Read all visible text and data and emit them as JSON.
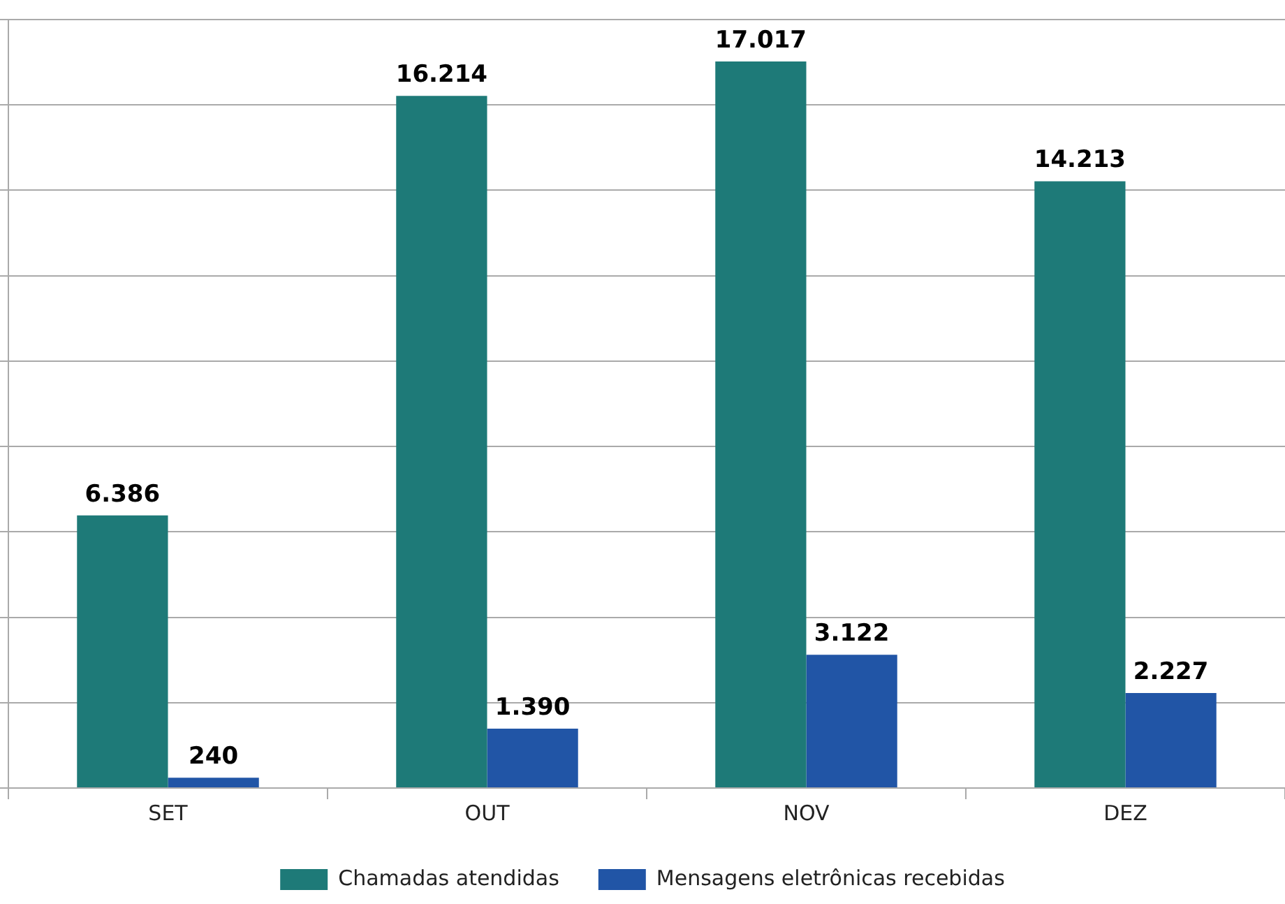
{
  "chart_data": {
    "type": "bar",
    "categories": [
      "SET",
      "OUT",
      "NOV",
      "DEZ"
    ],
    "series": [
      {
        "name": "Chamadas atendidas",
        "color": "#1e7a78",
        "values": [
          6386,
          16214,
          17017,
          14213
        ],
        "value_labels": [
          "6.386",
          "16.214",
          "17.017",
          "14.213"
        ]
      },
      {
        "name": "Mensagens eletrônicas recebidas",
        "color": "#2155a6",
        "values": [
          240,
          1390,
          3122,
          2227
        ],
        "value_labels": [
          "240",
          "1.390",
          "3.122",
          "2.227"
        ]
      }
    ],
    "ylim": [
      0,
      18000
    ],
    "yticks": [
      {
        "value": 0,
        "label": null
      },
      {
        "value": 2000,
        "label": null
      },
      {
        "value": 4000,
        "label": null
      },
      {
        "value": 6000,
        "label": null
      },
      {
        "value": 8000,
        "label": null
      },
      {
        "value": 10000,
        "label": null
      },
      {
        "value": 12000,
        "label": null
      },
      {
        "value": 14000,
        "label": null
      },
      {
        "value": 16000,
        "label": null
      },
      {
        "value": 18000,
        "label": null
      }
    ],
    "grid": "y",
    "legend": "bottom",
    "tick_labels": "x"
  }
}
